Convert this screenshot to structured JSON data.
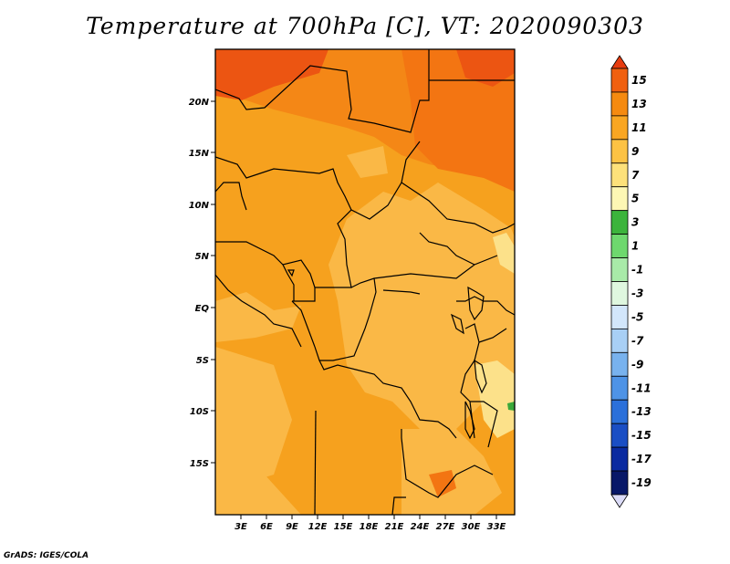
{
  "title": "Temperature at 700hPa [C], VT: 2020090303",
  "credit": "GrADS: IGES/COLA",
  "lon_ticks": [
    "3E",
    "6E",
    "9E",
    "12E",
    "15E",
    "18E",
    "21E",
    "24E",
    "27E",
    "30E",
    "33E"
  ],
  "lat_ticks": [
    "20N",
    "15N",
    "10N",
    "5N",
    "EQ",
    "5S",
    "10S",
    "15S"
  ],
  "colorbar": {
    "labels": [
      "15",
      "13",
      "11",
      "9",
      "7",
      "5",
      "3",
      "1",
      "-1",
      "-3",
      "-5",
      "-7",
      "-9",
      "-11",
      "-13",
      "-15",
      "-17",
      "-19"
    ],
    "colors": [
      "#e63c10",
      "#f06010",
      "#f58a10",
      "#f9a622",
      "#fcc244",
      "#fde17a",
      "#fdf7b4",
      "#3cb43c",
      "#6ed86e",
      "#a8eaa8",
      "#dff7df",
      "#d2e6fb",
      "#a8cff5",
      "#78b2ee",
      "#4e93e6",
      "#2b70da",
      "#1a4ec4",
      "#0a2aa0",
      "#081868",
      "#dcdcf8"
    ]
  },
  "map": {
    "lon_range": [
      0,
      35
    ],
    "lat_range": [
      -20,
      25
    ],
    "base_color": "#f6a11e"
  }
}
